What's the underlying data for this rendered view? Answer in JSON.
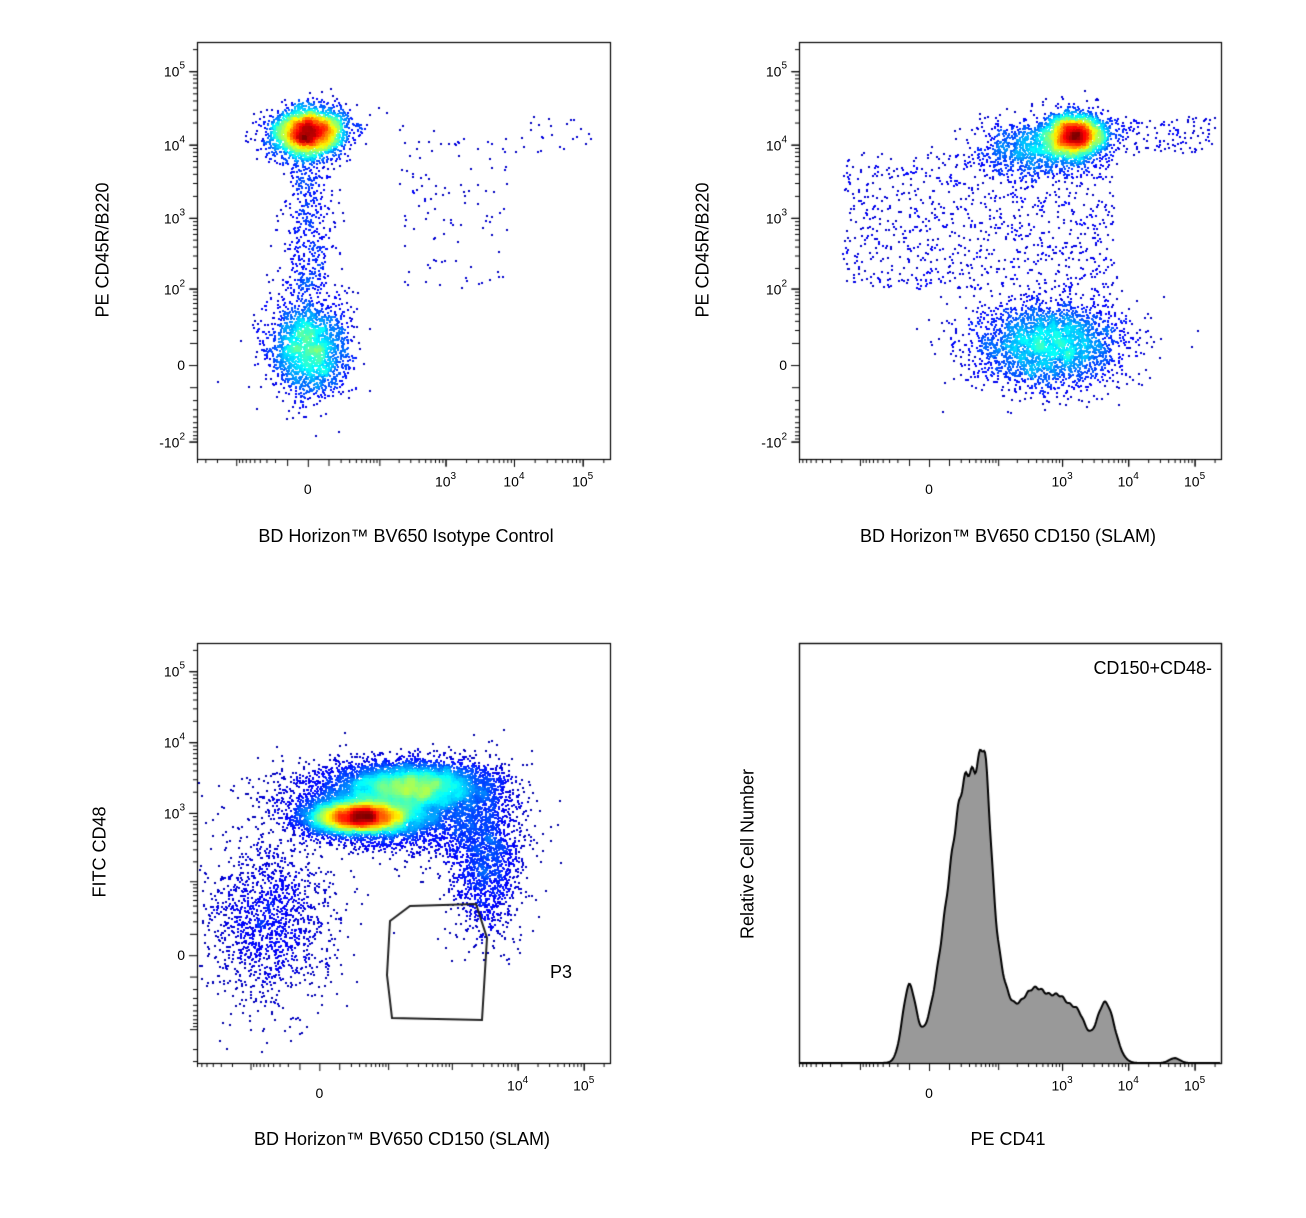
{
  "chart_data": [
    {
      "type": "scatter",
      "xlabel": "BD Horizon™ BV650 Isotype Control",
      "ylabel": "PE CD45R/B220",
      "x_ticks": [
        "0",
        "10^3",
        "10^4",
        "10^5"
      ],
      "y_ticks": [
        "-10^2",
        "0",
        "10^2",
        "10^3",
        "10^4",
        "10^5"
      ],
      "x_scale": "biexponential",
      "y_scale": "biexponential",
      "populations": [
        {
          "x": 0,
          "y": 15000,
          "share": 0.62
        },
        {
          "x": 0,
          "y": 10,
          "share": 0.38
        }
      ],
      "grid": false
    },
    {
      "type": "scatter",
      "xlabel": "BD Horizon™ BV650 CD150 (SLAM)",
      "ylabel": "PE CD45R/B220",
      "x_ticks": [
        "0",
        "10^3",
        "10^4",
        "10^5"
      ],
      "y_ticks": [
        "-10^2",
        "0",
        "10^2",
        "10^3",
        "10^4",
        "10^5"
      ],
      "x_scale": "biexponential",
      "y_scale": "biexponential",
      "populations": [
        {
          "x": 1500,
          "y": 14000,
          "share": 0.58
        },
        {
          "x": 600,
          "y": 10,
          "share": 0.42
        }
      ],
      "grid": false
    },
    {
      "type": "scatter",
      "xlabel": "BD Horizon™ BV650 CD150 (SLAM)",
      "ylabel": "FITC CD48",
      "x_ticks": [
        "0",
        "10^4",
        "10^5"
      ],
      "y_ticks": [
        "0",
        "10^3",
        "10^4",
        "10^5"
      ],
      "x_scale": "biexponential",
      "y_scale": "biexponential",
      "populations": [
        {
          "x": 30,
          "y": 900,
          "share": 0.65
        },
        {
          "x": 300,
          "y": 2500,
          "share": 0.2
        },
        {
          "x": 3000,
          "y": 200,
          "share": 0.15
        }
      ],
      "gate": {
        "name": "P3"
      },
      "grid": false
    },
    {
      "type": "area",
      "title": "CD150+CD48-",
      "xlabel": "PE CD41",
      "ylabel": "Relative Cell Number",
      "x_ticks": [
        "0",
        "10^3",
        "10^4",
        "10^5"
      ],
      "x_scale": "biexponential",
      "fill_color": "#999999",
      "grid": false
    }
  ],
  "colors": {
    "density_low": "#0000ff",
    "density_high": "#ff0000",
    "histogram_fill": "#999999"
  }
}
